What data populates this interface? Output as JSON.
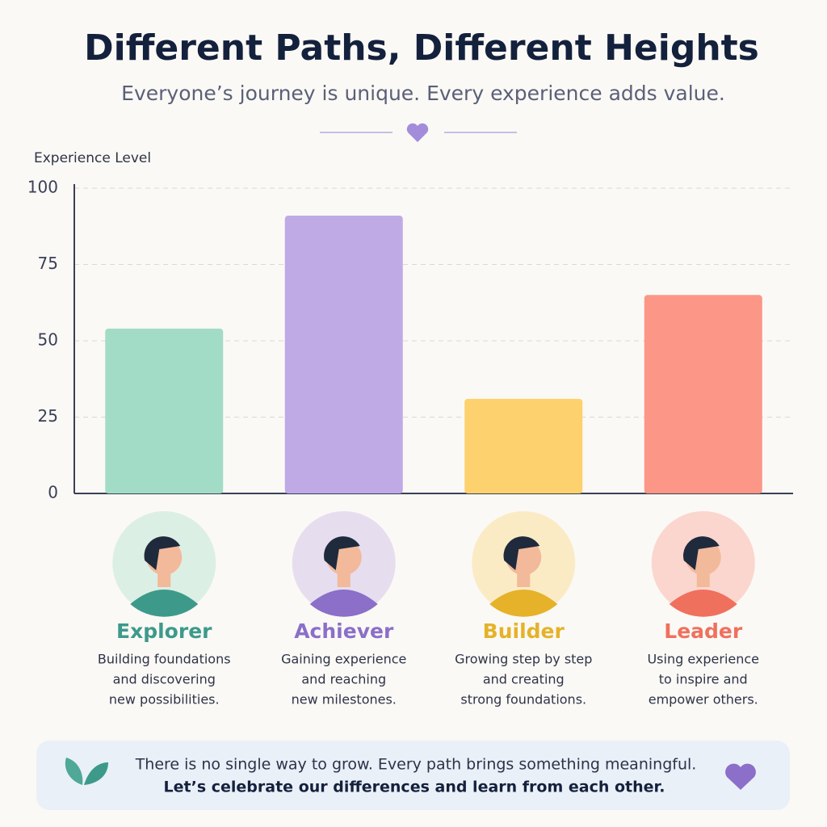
{
  "chart_data": {
    "type": "bar",
    "title": "Different Paths, Different Heights",
    "subtitle": "Everyone’s journey is unique. Every experience adds value.",
    "y_label": "Experience Level",
    "categories": [
      "Explorer",
      "Achiever",
      "Builder",
      "Leader"
    ],
    "values": [
      54,
      91,
      31,
      65
    ],
    "colors": [
      "#a3dcc6",
      "#bfaae6",
      "#fdd16e",
      "#fc9686"
    ],
    "label_colors": [
      "#3d9a8b",
      "#8b6fc9",
      "#e5b22a",
      "#f0705e"
    ],
    "descriptions": [
      [
        "Building foundations",
        "and discovering",
        "new possibilities."
      ],
      [
        "Gaining experience",
        "and reaching",
        "new milestones."
      ],
      [
        "Growing step by step",
        "and creating",
        "strong foundations."
      ],
      [
        "Using experience",
        "to inspire and",
        "empower others."
      ]
    ],
    "ylim": [
      0,
      100
    ],
    "yticks": [
      0,
      25,
      50,
      75,
      100
    ],
    "grid": true,
    "footer": [
      "There is no single way to grow. Every path brings something meaningful.",
      "Let’s celebrate our differences and learn from each other."
    ]
  }
}
